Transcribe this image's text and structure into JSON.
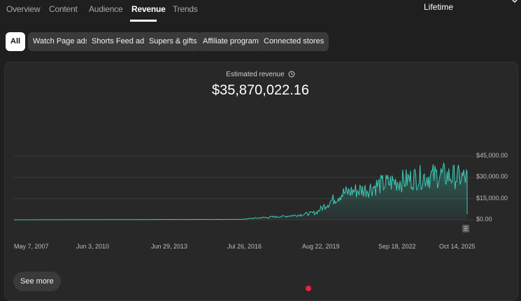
{
  "tabs": [
    "Overview",
    "Content",
    "Audience",
    "Revenue",
    "Trends"
  ],
  "active_tab": "Revenue",
  "period": "Lifetime",
  "filters": [
    "All",
    "Watch Page ads",
    "Shorts Feed ads",
    "Supers & gifts",
    "Affiliate program",
    "Connected stores"
  ],
  "active_filter": "All",
  "metric": {
    "label": "Estimated revenue",
    "value": "$35,870,022.16"
  },
  "see_more": "See more",
  "colors": {
    "accent": "#3ec9b4",
    "background": "#1f1f1f",
    "card": "#282828"
  },
  "chart_data": {
    "type": "area",
    "x_tick_labels": [
      "May 7, 2007",
      "Jun 3, 2010",
      "Jun 29, 2013",
      "Jul 26, 2016",
      "Aug 22, 2019",
      "Sep 18, 2022",
      "Oct 14, 2025"
    ],
    "y_tick_labels": [
      "$45,000.00",
      "$30,000.00",
      "$15,000.00",
      "$0.00"
    ],
    "ylim": [
      0,
      45000
    ],
    "grid": true,
    "x": [
      "2007-05-07",
      "2016-07-26",
      "2017-06-01",
      "2018-06-01",
      "2019-01-01",
      "2019-08-22",
      "2020-03-01",
      "2020-09-01",
      "2021-03-01",
      "2021-09-01",
      "2022-03-01",
      "2022-09-18",
      "2023-03-01",
      "2023-09-01",
      "2024-03-01",
      "2024-09-01",
      "2025-03-01",
      "2025-10-14"
    ],
    "values": [
      0,
      300,
      1500,
      2500,
      3500,
      5000,
      12000,
      18000,
      20000,
      21000,
      24000,
      26000,
      27000,
      29000,
      30000,
      31000,
      30000,
      29000
    ]
  }
}
